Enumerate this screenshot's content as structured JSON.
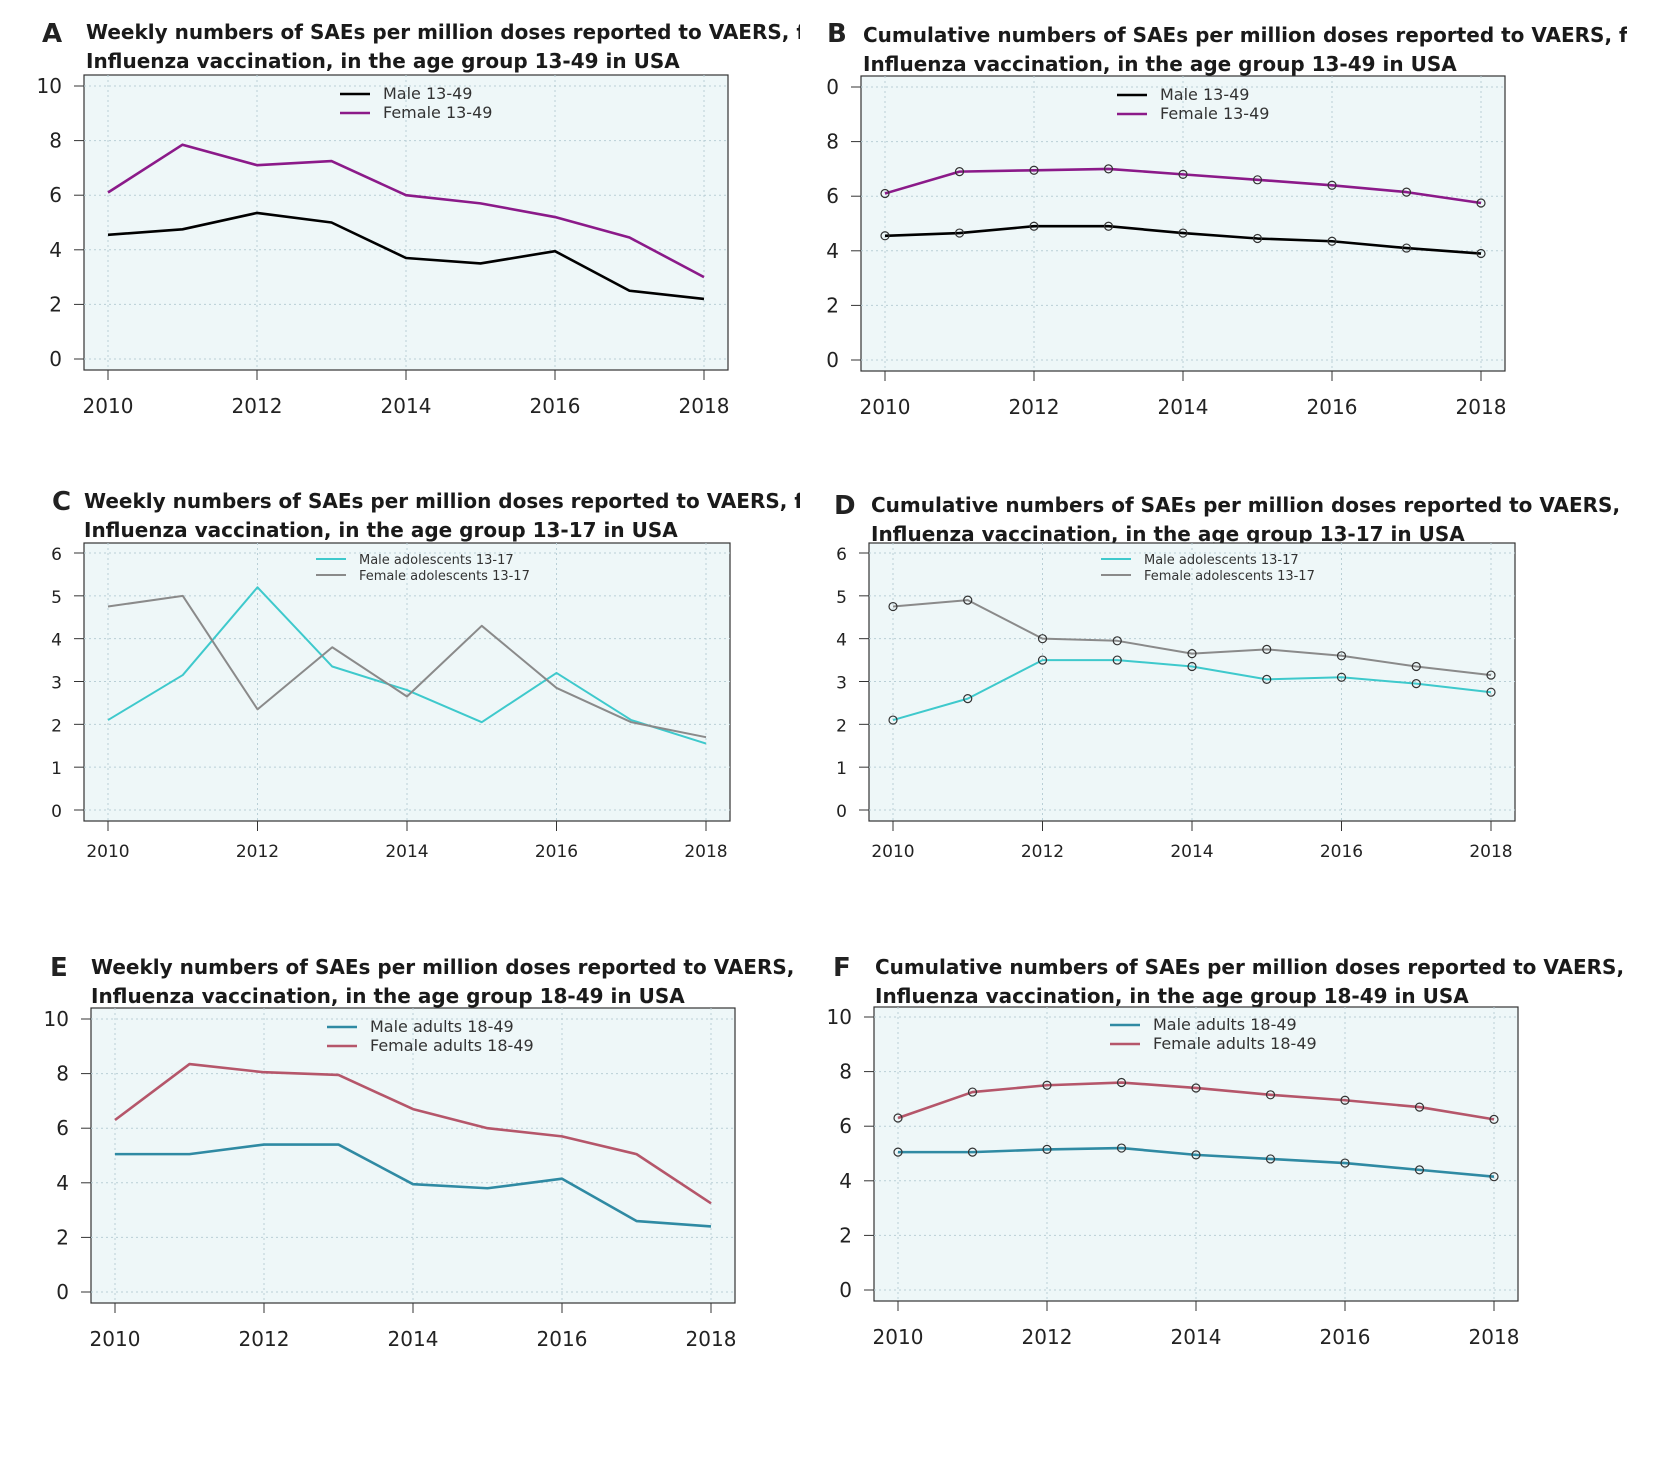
{
  "chart_data": [
    {
      "id": "A",
      "letter": "A",
      "type": "line",
      "title_lines": [
        "Weekly numbers of SAEs per million doses reported to VAERS, following",
        "Influenza vaccination, in the age group 13-49 in USA"
      ],
      "x": [
        2010,
        2011,
        2012,
        2013,
        2014,
        2015,
        2016,
        2017,
        2018
      ],
      "xticks": [
        "2010",
        "2012",
        "2014",
        "2016",
        "2018"
      ],
      "xtick_values": [
        2010,
        2012,
        2014,
        2016,
        2018
      ],
      "ylim": [
        0,
        10
      ],
      "yticks": [
        "0",
        "2",
        "4",
        "6",
        "8",
        "10"
      ],
      "ytick_values": [
        0,
        2,
        4,
        6,
        8,
        10
      ],
      "markers": false,
      "series": [
        {
          "name": "Male 13-49",
          "color": "#000000",
          "values": [
            4.55,
            4.75,
            5.35,
            5.0,
            3.7,
            3.5,
            3.95,
            2.5,
            2.2
          ]
        },
        {
          "name": "Female 13-49",
          "color": "#8b1a89",
          "values": [
            6.1,
            7.85,
            7.1,
            7.25,
            6.0,
            5.7,
            5.2,
            4.45,
            3.0
          ]
        }
      ]
    },
    {
      "id": "B",
      "letter": "B",
      "type": "line",
      "title_lines": [
        "Cumulative numbers of SAEs per million doses reported to VAERS, following",
        "Influenza vaccination, in the age group 13-49 in USA"
      ],
      "x": [
        2010,
        2011,
        2012,
        2013,
        2014,
        2015,
        2016,
        2017,
        2018
      ],
      "xticks": [
        "2010",
        "2012",
        "2014",
        "2016",
        "2018"
      ],
      "xtick_values": [
        2010,
        2012,
        2014,
        2016,
        2018
      ],
      "ylim": [
        0,
        10
      ],
      "yticks": [
        "0",
        "2",
        "4",
        "6",
        "8",
        "10"
      ],
      "ytick_values": [
        0,
        2,
        4,
        6,
        8,
        10
      ],
      "markers": true,
      "series": [
        {
          "name": "Male 13-49",
          "color": "#000000",
          "values": [
            4.55,
            4.65,
            4.9,
            4.9,
            4.65,
            4.45,
            4.35,
            4.1,
            3.9
          ]
        },
        {
          "name": "Female 13-49",
          "color": "#8b1a89",
          "values": [
            6.1,
            6.9,
            6.95,
            7.0,
            6.8,
            6.6,
            6.4,
            6.15,
            5.75
          ]
        }
      ]
    },
    {
      "id": "C",
      "letter": "C",
      "type": "line",
      "title_lines": [
        "Weekly numbers of SAEs per million doses reported to VAERS, following",
        "Influenza vaccination, in the age group 13-17 in USA"
      ],
      "x": [
        2010,
        2011,
        2012,
        2013,
        2014,
        2015,
        2016,
        2017,
        2018
      ],
      "xticks": [
        "2010",
        "2012",
        "2014",
        "2016",
        "2018"
      ],
      "xtick_values": [
        2010,
        2012,
        2014,
        2016,
        2018
      ],
      "ylim": [
        0,
        6
      ],
      "yticks": [
        "0",
        "1",
        "2",
        "3",
        "4",
        "5",
        "6"
      ],
      "ytick_values": [
        0,
        1,
        2,
        3,
        4,
        5,
        6
      ],
      "markers": false,
      "series": [
        {
          "name": "Male adolescents 13-17",
          "color": "#3ec9cc",
          "values": [
            2.1,
            3.15,
            5.2,
            3.35,
            2.8,
            2.05,
            3.2,
            2.1,
            1.55
          ]
        },
        {
          "name": "Female adolescents 13-17",
          "color": "#8a8a8a",
          "values": [
            4.75,
            5.0,
            2.35,
            3.8,
            2.65,
            4.3,
            2.85,
            2.05,
            1.7
          ]
        }
      ]
    },
    {
      "id": "D",
      "letter": "D",
      "type": "line",
      "title_lines": [
        "Cumulative numbers of SAEs per million doses reported to VAERS, following",
        "Influenza vaccination, in the age group 13-17 in USA"
      ],
      "x": [
        2010,
        2011,
        2012,
        2013,
        2014,
        2015,
        2016,
        2017,
        2018
      ],
      "xticks": [
        "2010",
        "2012",
        "2014",
        "2016",
        "2018"
      ],
      "xtick_values": [
        2010,
        2012,
        2014,
        2016,
        2018
      ],
      "ylim": [
        0,
        6
      ],
      "yticks": [
        "0",
        "1",
        "2",
        "3",
        "4",
        "5",
        "6"
      ],
      "ytick_values": [
        0,
        1,
        2,
        3,
        4,
        5,
        6
      ],
      "markers": true,
      "series": [
        {
          "name": "Male adolescents 13-17",
          "color": "#3ec9cc",
          "values": [
            2.1,
            2.6,
            3.5,
            3.5,
            3.35,
            3.05,
            3.1,
            2.95,
            2.75
          ]
        },
        {
          "name": "Female adolescents 13-17",
          "color": "#8a8a8a",
          "values": [
            4.75,
            4.9,
            4.0,
            3.95,
            3.65,
            3.75,
            3.6,
            3.35,
            3.15
          ]
        }
      ]
    },
    {
      "id": "E",
      "letter": "E",
      "type": "line",
      "title_lines": [
        "Weekly numbers of SAEs per million doses reported to VAERS, following",
        "Influenza vaccination, in the age group 18-49 in USA"
      ],
      "x": [
        2010,
        2011,
        2012,
        2013,
        2014,
        2015,
        2016,
        2017,
        2018
      ],
      "xticks": [
        "2010",
        "2012",
        "2014",
        "2016",
        "2018"
      ],
      "xtick_values": [
        2010,
        2012,
        2014,
        2016,
        2018
      ],
      "ylim": [
        0,
        10
      ],
      "yticks": [
        "0",
        "2",
        "4",
        "6",
        "8",
        "10"
      ],
      "ytick_values": [
        0,
        2,
        4,
        6,
        8,
        10
      ],
      "markers": false,
      "series": [
        {
          "name": "Male adults 18-49",
          "color": "#2f8aa3",
          "values": [
            5.05,
            5.05,
            5.4,
            5.4,
            3.95,
            3.8,
            4.15,
            2.6,
            2.4
          ]
        },
        {
          "name": "Female adults 18-49",
          "color": "#b5566a",
          "values": [
            6.3,
            8.35,
            8.05,
            7.95,
            6.7,
            6.0,
            5.7,
            5.05,
            3.25
          ]
        }
      ]
    },
    {
      "id": "F",
      "letter": "F",
      "type": "line",
      "title_lines": [
        "Cumulative numbers of SAEs per million doses reported to VAERS, following",
        "Influenza vaccination, in the age group 18-49 in USA"
      ],
      "x": [
        2010,
        2011,
        2012,
        2013,
        2014,
        2015,
        2016,
        2017,
        2018
      ],
      "xticks": [
        "2010",
        "2012",
        "2014",
        "2016",
        "2018"
      ],
      "xtick_values": [
        2010,
        2012,
        2014,
        2016,
        2018
      ],
      "ylim": [
        0,
        10
      ],
      "yticks": [
        "0",
        "2",
        "4",
        "6",
        "8",
        "10"
      ],
      "ytick_values": [
        0,
        2,
        4,
        6,
        8,
        10
      ],
      "markers": true,
      "series": [
        {
          "name": "Male adults 18-49",
          "color": "#2f8aa3",
          "values": [
            5.05,
            5.05,
            5.15,
            5.2,
            4.95,
            4.8,
            4.65,
            4.4,
            4.15
          ]
        },
        {
          "name": "Female adults 18-49",
          "color": "#b5566a",
          "values": [
            6.3,
            7.25,
            7.5,
            7.6,
            7.4,
            7.15,
            6.95,
            6.7,
            6.25
          ]
        }
      ]
    }
  ]
}
